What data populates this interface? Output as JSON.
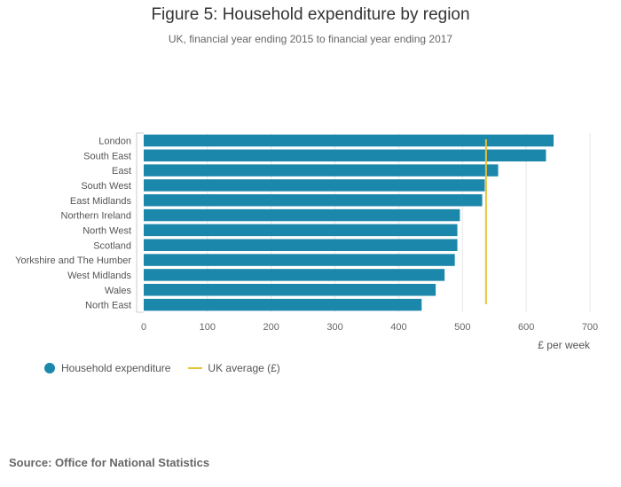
{
  "chart_data": {
    "type": "bar",
    "orientation": "horizontal",
    "title": "Figure 5: Household expenditure by region",
    "subtitle": "UK, financial year ending 2015 to financial year ending 2017",
    "categories": [
      "London",
      "South East",
      "East",
      "South West",
      "East Midlands",
      "Northern Ireland",
      "North West",
      "Scotland",
      "Yorkshire and The Humber",
      "West Midlands",
      "Wales",
      "North East"
    ],
    "series": [
      {
        "name": "Household expenditure",
        "color": "#1b87aa",
        "values": [
          643,
          631,
          556,
          535,
          531,
          496,
          492,
          492,
          488,
          472,
          458,
          436
        ]
      }
    ],
    "reference_line": {
      "name": "UK average (£)",
      "value": 537,
      "color": "#e8c23a"
    },
    "xlabel": "£ per week",
    "xlim": [
      0,
      700
    ],
    "xticks": [
      0,
      100,
      200,
      300,
      400,
      500,
      600,
      700
    ],
    "grid": true,
    "legend_position": "bottom-left"
  },
  "source": "Source: Office for National Statistics"
}
